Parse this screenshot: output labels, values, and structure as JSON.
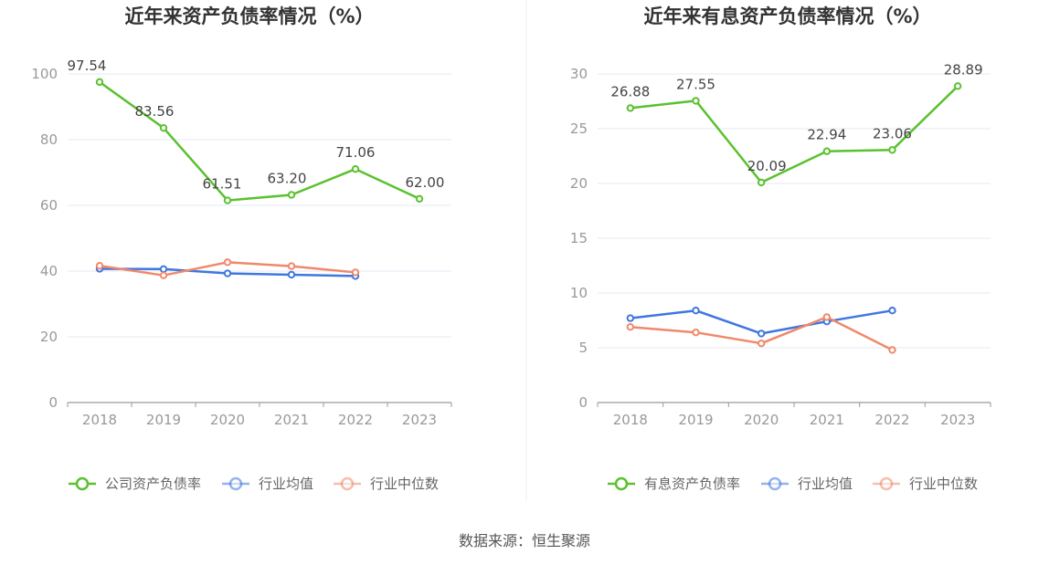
{
  "source": "数据来源：恒生聚源",
  "chart_data": [
    {
      "type": "line",
      "title": "近年来资产负债率情况（%）",
      "categories": [
        "2018",
        "2019",
        "2020",
        "2021",
        "2022",
        "2023"
      ],
      "ylim": [
        0,
        100
      ],
      "yticks": [
        0,
        20,
        40,
        60,
        80,
        100
      ],
      "grid": true,
      "legend_position": "bottom",
      "series": [
        {
          "name": "公司资产负债率",
          "color": "#5ac12f",
          "values": [
            97.54,
            83.56,
            61.51,
            63.2,
            71.06,
            62.0
          ],
          "labels": [
            "97.54",
            "83.56",
            "61.51",
            "63.20",
            "71.06",
            "62.00"
          ]
        },
        {
          "name": "行业均值",
          "color": "#3f77e0",
          "values": [
            40.7,
            40.6,
            39.3,
            38.9,
            38.5,
            null
          ]
        },
        {
          "name": "行业中位数",
          "color": "#f0896a",
          "values": [
            41.6,
            38.7,
            42.7,
            41.5,
            39.6,
            null
          ]
        }
      ]
    },
    {
      "type": "line",
      "title": "近年来有息资产负债率情况（%）",
      "categories": [
        "2018",
        "2019",
        "2020",
        "2021",
        "2022",
        "2023"
      ],
      "ylim": [
        0,
        30
      ],
      "yticks": [
        0,
        5,
        10,
        15,
        20,
        25,
        30
      ],
      "grid": true,
      "legend_position": "bottom",
      "series": [
        {
          "name": "有息资产负债率",
          "color": "#5ac12f",
          "values": [
            26.88,
            27.55,
            20.09,
            22.94,
            23.06,
            28.89
          ],
          "labels": [
            "26.88",
            "27.55",
            "20.09",
            "22.94",
            "23.06",
            "28.89"
          ]
        },
        {
          "name": "行业均值",
          "color": "#3f77e0",
          "values": [
            7.7,
            8.4,
            6.3,
            7.4,
            8.4,
            null
          ]
        },
        {
          "name": "行业中位数",
          "color": "#f0896a",
          "values": [
            6.9,
            6.4,
            5.4,
            7.8,
            4.8,
            null
          ]
        }
      ]
    }
  ]
}
